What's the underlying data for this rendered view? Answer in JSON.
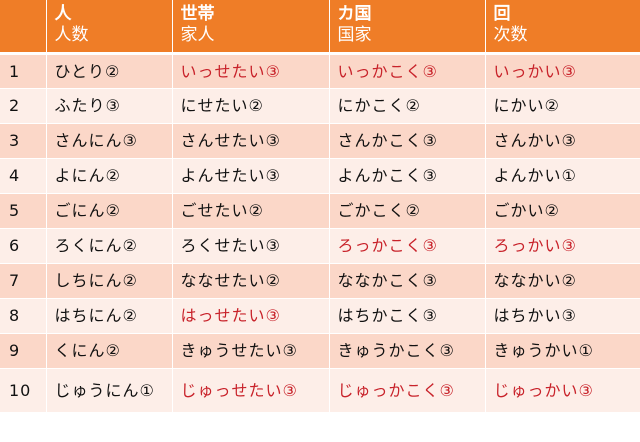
{
  "header": [
    {
      "top": "",
      "bottom": ""
    },
    {
      "top": "人",
      "bottom": "人数"
    },
    {
      "top": "世帯",
      "bottom": "家人"
    },
    {
      "top": "カ国",
      "bottom": "国家"
    },
    {
      "top": "回",
      "bottom": "次数"
    }
  ],
  "rows": [
    {
      "n": "1",
      "cells": [
        {
          "t": "ひとり②",
          "red": false
        },
        {
          "t": "いっせたい③",
          "red": true
        },
        {
          "t": "いっかこく③",
          "red": true
        },
        {
          "t": "いっかい③",
          "red": true
        }
      ]
    },
    {
      "n": "2",
      "cells": [
        {
          "t": "ふたり③",
          "red": false
        },
        {
          "t": "にせたい②",
          "red": false
        },
        {
          "t": "にかこく②",
          "red": false
        },
        {
          "t": "にかい②",
          "red": false
        }
      ]
    },
    {
      "n": "3",
      "cells": [
        {
          "t": "さんにん③",
          "red": false
        },
        {
          "t": "さんせたい③",
          "red": false
        },
        {
          "t": "さんかこく③",
          "red": false
        },
        {
          "t": "さんかい③",
          "red": false
        }
      ]
    },
    {
      "n": "4",
      "cells": [
        {
          "t": "よにん②",
          "red": false
        },
        {
          "t": "よんせたい③",
          "red": false
        },
        {
          "t": "よんかこく③",
          "red": false
        },
        {
          "t": "よんかい①",
          "red": false
        }
      ]
    },
    {
      "n": "5",
      "cells": [
        {
          "t": "ごにん②",
          "red": false
        },
        {
          "t": "ごせたい②",
          "red": false
        },
        {
          "t": "ごかこく②",
          "red": false
        },
        {
          "t": "ごかい②",
          "red": false
        }
      ]
    },
    {
      "n": "6",
      "cells": [
        {
          "t": "ろくにん②",
          "red": false
        },
        {
          "t": "ろくせたい③",
          "red": false
        },
        {
          "t": "ろっかこく③",
          "red": true
        },
        {
          "t": "ろっかい③",
          "red": true
        }
      ]
    },
    {
      "n": "7",
      "cells": [
        {
          "t": "しちにん②",
          "red": false
        },
        {
          "t": "ななせたい②",
          "red": false
        },
        {
          "t": "ななかこく③",
          "red": false
        },
        {
          "t": "ななかい②",
          "red": false
        }
      ]
    },
    {
      "n": "8",
      "cells": [
        {
          "t": "はちにん②",
          "red": false
        },
        {
          "t": "はっせたい③",
          "red": true
        },
        {
          "t": "はちかこく③",
          "red": false
        },
        {
          "t": "はちかい③",
          "red": false
        }
      ]
    },
    {
      "n": "9",
      "cells": [
        {
          "t": "くにん②",
          "red": false
        },
        {
          "t": "きゅうせたい③",
          "red": false
        },
        {
          "t": "きゅうかこく③",
          "red": false
        },
        {
          "t": "きゅうかい①",
          "red": false
        }
      ]
    },
    {
      "n": "10",
      "cells": [
        {
          "t": "じゅうにん①",
          "red": false
        },
        {
          "t": "じゅっせたい③",
          "red": true
        },
        {
          "t": "じゅっかこく③",
          "red": true
        },
        {
          "t": "じゅっかい③",
          "red": true
        }
      ]
    }
  ],
  "colors": {
    "header_bg": "#ef7d27",
    "row_odd": "#fbd7c8",
    "row_even": "#fdeee8",
    "highlight_text": "#c8222a"
  }
}
